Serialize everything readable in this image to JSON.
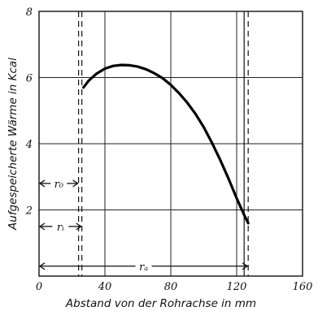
{
  "chart_data": {
    "type": "line",
    "xlabel": "Abstand von der Rohrachse in mm",
    "ylabel": "Aufgespeicherte Wärme in Kcal",
    "xlim": [
      0,
      160
    ],
    "ylim": [
      0,
      8
    ],
    "x_ticks": [
      "0",
      "40",
      "80",
      "120",
      "160"
    ],
    "y_ticks": [
      "2",
      "4",
      "6",
      "8"
    ],
    "grid": true,
    "series": [
      {
        "x": [
          27,
          30,
          35,
          40,
          45,
          50,
          55,
          60,
          65,
          70,
          75,
          80,
          85,
          90,
          95,
          100,
          105,
          110,
          115,
          120,
          125,
          127
        ],
        "y": [
          5.7,
          5.9,
          6.12,
          6.27,
          6.35,
          6.38,
          6.37,
          6.33,
          6.25,
          6.13,
          5.98,
          5.78,
          5.53,
          5.24,
          4.9,
          4.5,
          4.03,
          3.51,
          2.95,
          2.35,
          1.8,
          1.6
        ]
      }
    ],
    "reference_lines": [
      {
        "name": "r_0",
        "x": 24
      },
      {
        "name": "r_i",
        "x": 26
      },
      {
        "name": "r_a",
        "x": 127
      }
    ],
    "annotations": [
      {
        "label": "r₀",
        "from": 0,
        "to": 24,
        "y": 2.8
      },
      {
        "label": "rᵢ",
        "from": 0,
        "to": 26,
        "y": 1.5
      },
      {
        "label": "rₐ",
        "from": 0,
        "to": 127,
        "y": 0.3
      }
    ]
  }
}
